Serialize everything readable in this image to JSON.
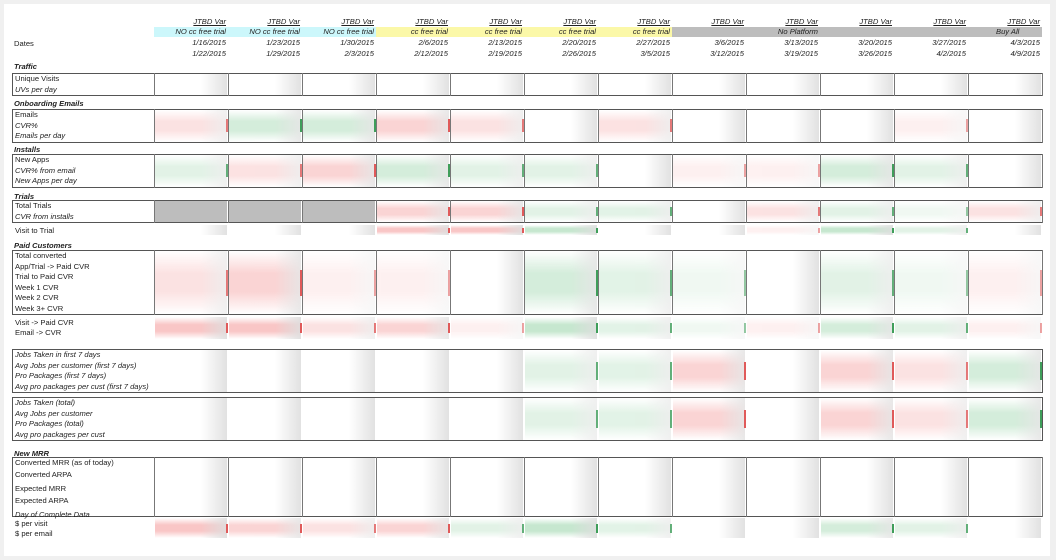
{
  "colors": {
    "cyan_band": "#ccf7fb",
    "yellow_band": "#fbf8a8",
    "gray_band": "#bdbdbd",
    "red_cell": "#f9c6c6",
    "red_mark": "#e05a5a",
    "green_cell": "#c6e7cf",
    "green_mark": "#3f9e5a"
  },
  "header": {
    "dates_label": "Dates",
    "columns": [
      {
        "var": "JTBD Var",
        "band": "NO cc free trial",
        "band_color": "cyan",
        "start": "1/16/2015",
        "end": "1/22/2015"
      },
      {
        "var": "JTBD Var",
        "band": "NO cc free trial",
        "band_color": "cyan",
        "start": "1/23/2015",
        "end": "1/29/2015"
      },
      {
        "var": "JTBD Var",
        "band": "NO cc free trial",
        "band_color": "cyan",
        "start": "1/30/2015",
        "end": "2/3/2015"
      },
      {
        "var": "JTBD Var",
        "band": "cc free trial",
        "band_color": "yellow",
        "start": "2/6/2015",
        "end": "2/12/2015"
      },
      {
        "var": "JTBD Var",
        "band": "cc free trial",
        "band_color": "yellow",
        "start": "2/13/2015",
        "end": "2/19/2015"
      },
      {
        "var": "JTBD Var",
        "band": "cc free trial",
        "band_color": "yellow",
        "start": "2/20/2015",
        "end": "2/26/2015"
      },
      {
        "var": "JTBD Var",
        "band": "cc free trial",
        "band_color": "yellow",
        "start": "2/27/2015",
        "end": "3/5/2015"
      },
      {
        "var": "JTBD Var",
        "band": "",
        "band_color": "gray",
        "start": "3/6/2015",
        "end": "3/12/2015"
      },
      {
        "var": "JTBD Var",
        "band": "No Platform",
        "band_color": "gray",
        "start": "3/13/2015",
        "end": "3/19/2015"
      },
      {
        "var": "JTBD Var",
        "band": "",
        "band_color": "gray",
        "start": "3/20/2015",
        "end": "3/26/2015"
      },
      {
        "var": "JTBD Var",
        "band": "",
        "band_color": "gray",
        "start": "3/27/2015",
        "end": "4/2/2015"
      },
      {
        "var": "JTBD Var",
        "band": "Buy All",
        "band_color": "gray",
        "start": "4/3/2015",
        "end": "4/9/2015"
      }
    ]
  },
  "sections": {
    "traffic": {
      "title": "Traffic",
      "rows": [
        "Unique Visits",
        "UVs per day"
      ]
    },
    "onboarding": {
      "title": "Onboarding Emails",
      "rows": [
        "Emails",
        "CVR%",
        "Emails per day"
      ]
    },
    "installs": {
      "title": "Installs",
      "rows": [
        "New Apps",
        "CVR% from email",
        "New Apps per day"
      ]
    },
    "trials": {
      "title": "Trials",
      "rows": [
        "Total Trials",
        "CVR from installs"
      ],
      "extra": "Visit to Trial"
    },
    "paid": {
      "title": "Paid Customers",
      "rows": [
        "Total converted",
        "App/Trial -> Paid CVR",
        "Trial to Paid CVR",
        "Week 1 CVR",
        "Week 2 CVR",
        "Week 3+ CVR"
      ],
      "extra": [
        "Visit -> Paid CVR",
        "Email -> CVR"
      ]
    },
    "jobs7": {
      "rows": [
        "Jobs Taken in first 7 days",
        "Avg Jobs per customer (first 7 days)",
        "Pro Packages (first 7 days)",
        "Avg pro packages per cust (first 7 days)"
      ]
    },
    "jobs_total": {
      "rows": [
        "Jobs Taken (total)",
        "Avg Jobs per customer",
        "Pro Packages (total)",
        "Avg pro packages per cust"
      ]
    },
    "mrr": {
      "title": "New MRR",
      "rows": [
        "Converted MRR (as of today)",
        "Converted ARPA",
        "Expected MRR",
        "Expected ARPA",
        "Day of Complete Data"
      ],
      "extra": [
        "$ per visit",
        "$ per email"
      ]
    }
  },
  "cell_shading": {
    "traffic": [
      "n",
      "n",
      "n",
      "n",
      "n",
      "n",
      "n",
      "n",
      "n",
      "n",
      "n",
      "n"
    ],
    "onboarding": [
      "r1",
      "g2",
      "g2",
      "r2",
      "r1",
      "n",
      "r1",
      "n",
      "n",
      "n",
      "r0",
      "n"
    ],
    "installs": [
      "g1",
      "r1",
      "r2",
      "g2",
      "g1",
      "g1",
      "n",
      "r0",
      "r0",
      "g2",
      "g1",
      "n"
    ],
    "trials": [
      "gray",
      "gray",
      "gray",
      "r2",
      "r2",
      "g1",
      "g1",
      "n",
      "r1",
      "g1",
      "g0",
      "r1"
    ],
    "visit_trial": [
      "n",
      "n",
      "n",
      "r3",
      "r3",
      "g3",
      "n",
      "n",
      "r0",
      "g3",
      "g1",
      "n"
    ],
    "paid": [
      "r1",
      "r2",
      "r0",
      "r0",
      "n",
      "g2",
      "g1",
      "g0",
      "n",
      "g1",
      "g0",
      "r0"
    ],
    "visit_paid": [
      "r3",
      "r3",
      "r1",
      "r2",
      "r0",
      "g3",
      "g1",
      "g0",
      "r0",
      "g2",
      "g1",
      "r0"
    ],
    "jobs7": [
      "n",
      "n",
      "n",
      "n",
      "n",
      "g1",
      "g1",
      "r2",
      "n",
      "r2",
      "r1",
      "g2"
    ],
    "jobs_total": [
      "n",
      "n",
      "n",
      "n",
      "n",
      "g1",
      "g1",
      "r2",
      "n",
      "r2",
      "r1",
      "g2"
    ],
    "mrr": [
      "n",
      "n",
      "n",
      "n",
      "n",
      "n",
      "n",
      "n",
      "n",
      "n",
      "n",
      "n"
    ],
    "dollar": [
      "r3",
      "r2",
      "r1",
      "r2",
      "g1",
      "g3",
      "g1",
      "n",
      "n",
      "g2",
      "g1",
      "n"
    ]
  }
}
